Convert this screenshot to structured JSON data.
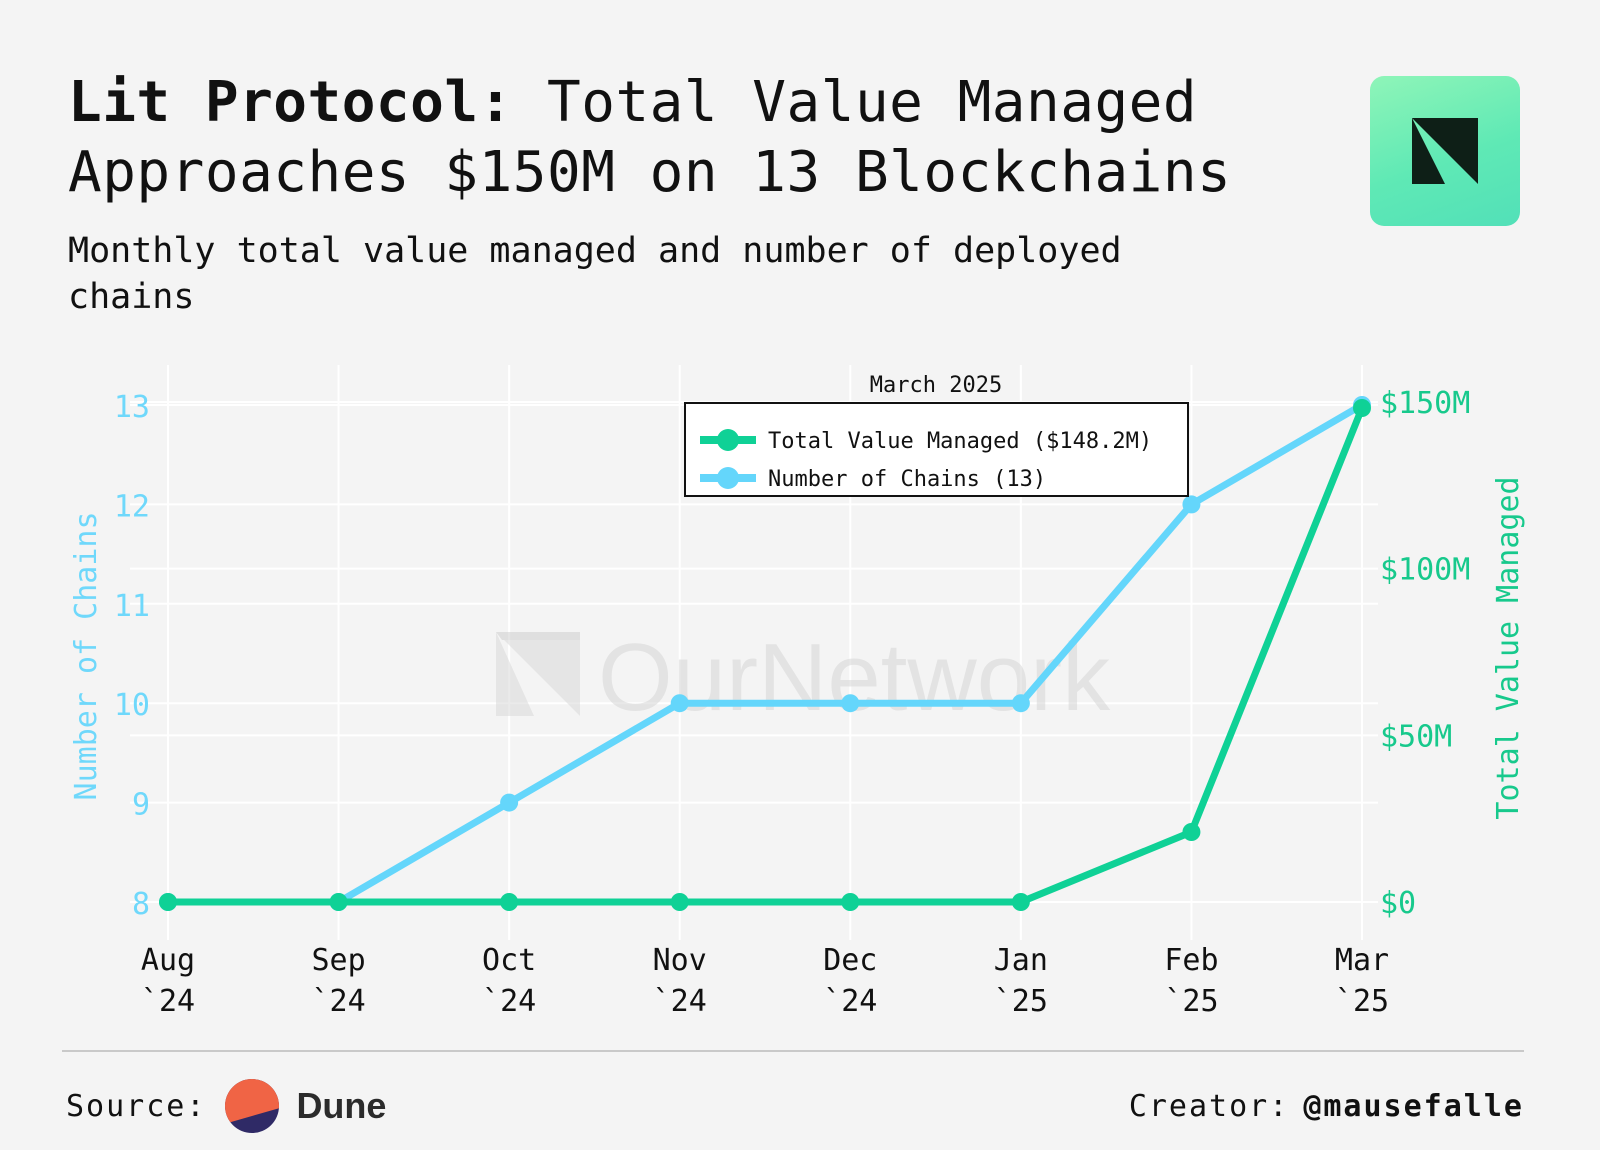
{
  "header": {
    "title_bold": "Lit Protocol:",
    "title_rest": " Total Value Managed Approaches $150M on 13 Blockchains",
    "subtitle": "Monthly total value managed and number of deployed chains"
  },
  "watermark": {
    "text": "OurNetwork"
  },
  "footer": {
    "source_label": "Source:",
    "source_name": "Dune",
    "creator_label": "Creator:",
    "creator_handle": "@mausefalle"
  },
  "colors": {
    "tvm": "#0fd196",
    "chains": "#64d6fb",
    "axis_right": "#17c98c",
    "axis_left": "#6fd8fb",
    "grid": "#ffffff",
    "background": "#f4f4f4"
  },
  "chart_data": {
    "type": "line",
    "x_categories": [
      {
        "month": "Aug",
        "year": "`24"
      },
      {
        "month": "Sep",
        "year": "`24"
      },
      {
        "month": "Oct",
        "year": "`24"
      },
      {
        "month": "Nov",
        "year": "`24"
      },
      {
        "month": "Dec",
        "year": "`24"
      },
      {
        "month": "Jan",
        "year": "`25"
      },
      {
        "month": "Feb",
        "year": "`25"
      },
      {
        "month": "Mar",
        "year": "`25"
      }
    ],
    "series": [
      {
        "name": "Number of Chains",
        "legend_label": "Number of Chains (13)",
        "axis": "left",
        "color": "#64d6fb",
        "values": [
          8,
          8,
          9,
          10,
          10,
          10,
          12,
          13
        ]
      },
      {
        "name": "Total Value Managed",
        "legend_label": "Total Value Managed ($148.2M)",
        "axis": "right",
        "color": "#0fd196",
        "values": [
          0,
          0,
          0,
          0,
          0,
          0,
          21,
          148.2
        ]
      }
    ],
    "y_left": {
      "label": "Number of Chains",
      "range": [
        8,
        13
      ],
      "ticks": [
        8,
        9,
        10,
        11,
        12,
        13
      ],
      "tick_labels": [
        "8",
        "9",
        "10",
        "11",
        "12",
        "13"
      ]
    },
    "y_right": {
      "label": "Total Value Managed",
      "unit": "$M",
      "range": [
        0,
        150
      ],
      "ticks": [
        0,
        50,
        100,
        150
      ],
      "tick_labels": [
        "$0",
        "$50M",
        "$100M",
        "$150M"
      ]
    },
    "legend": {
      "title": "March 2025",
      "position": "top-center"
    },
    "grid": true
  }
}
